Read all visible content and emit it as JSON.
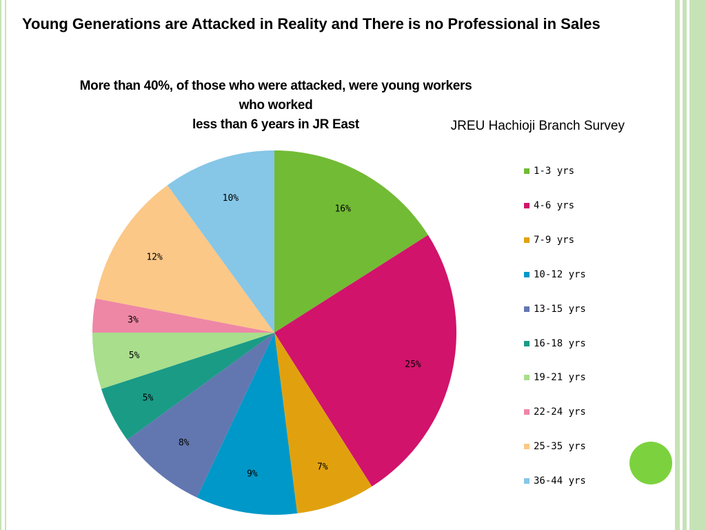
{
  "slide": {
    "title": "Young Generations are Attacked in Reality and There is no Professional in Sales"
  },
  "chart_data": {
    "type": "pie",
    "title_lines": [
      "More than 40%, of those who were attacked, were young workers who worked",
      "less than 6 years in JR East"
    ],
    "subtitle": "JREU Hachioji Branch Survey",
    "categories": [
      "1-3 yrs",
      "4-6 yrs",
      "7-9 yrs",
      "10-12 yrs",
      "13-15 yrs",
      "16-18 yrs",
      "19-21 yrs",
      "22-24 yrs",
      "25-35 yrs",
      "36-44 yrs"
    ],
    "values": [
      16,
      25,
      7,
      9,
      8,
      5,
      5,
      3,
      12,
      10
    ],
    "labels": [
      "16%",
      "25%",
      "7%",
      "9%",
      "8%",
      "5%",
      "5%",
      "3%",
      "12%",
      "10%"
    ],
    "colors": [
      "#72bb35",
      "#d1136b",
      "#e1a10f",
      "#0098c8",
      "#6277b0",
      "#1a9b86",
      "#a8de8c",
      "#ee87a6",
      "#fbc887",
      "#86c6e7"
    ],
    "legend_placement": "right"
  },
  "decor": {
    "accent_circle_color": "#7cd23e",
    "border_color": "#c5e3b5"
  }
}
